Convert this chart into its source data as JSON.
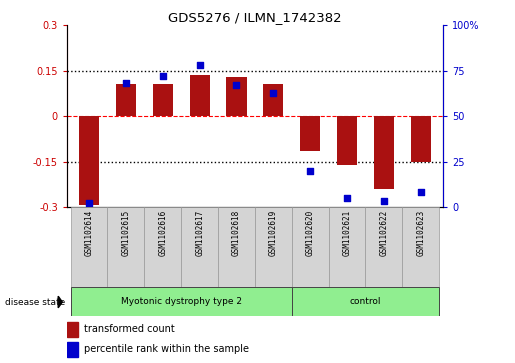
{
  "title": "GDS5276 / ILMN_1742382",
  "samples": [
    "GSM1102614",
    "GSM1102615",
    "GSM1102616",
    "GSM1102617",
    "GSM1102618",
    "GSM1102619",
    "GSM1102620",
    "GSM1102621",
    "GSM1102622",
    "GSM1102623"
  ],
  "bar_values": [
    -0.295,
    0.105,
    0.105,
    0.135,
    0.13,
    0.105,
    -0.115,
    -0.16,
    -0.24,
    -0.15
  ],
  "dot_values": [
    2,
    68,
    72,
    78,
    67,
    63,
    20,
    5,
    3,
    8
  ],
  "bar_color": "#aa1111",
  "dot_color": "#0000cc",
  "ylim_left": [
    -0.3,
    0.3
  ],
  "ylim_right": [
    0,
    100
  ],
  "yticks_left": [
    -0.3,
    -0.15,
    0.0,
    0.15,
    0.3
  ],
  "ytick_labels_left": [
    "-0.3",
    "-0.15",
    "0",
    "0.15",
    "0.3"
  ],
  "yticks_right": [
    0,
    25,
    50,
    75,
    100
  ],
  "ytick_labels_right": [
    "0",
    "25",
    "50",
    "75",
    "100%"
  ],
  "groups": [
    {
      "label": "Myotonic dystrophy type 2",
      "start": 0,
      "end": 6,
      "color": "#90ee90"
    },
    {
      "label": "control",
      "start": 6,
      "end": 10,
      "color": "#90ee90"
    }
  ],
  "disease_state_label": "disease state",
  "legend_bar_label": "transformed count",
  "legend_dot_label": "percentile rank within the sample",
  "background_color": "#ffffff",
  "tick_label_color_left": "#cc0000",
  "tick_label_color_right": "#0000cc",
  "bar_width": 0.55
}
